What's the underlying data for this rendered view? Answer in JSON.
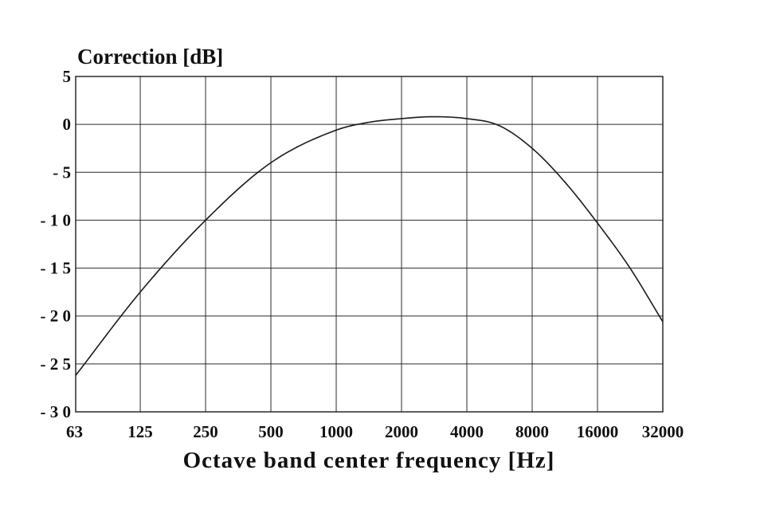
{
  "chart_data": {
    "type": "line",
    "title": "",
    "ylabel": "Correction [dB]",
    "xlabel": "Octave band center frequency [Hz]",
    "x_scale": "log2 (octave bands)",
    "categories": [
      "63",
      "125",
      "250",
      "500",
      "1000",
      "2000",
      "4000",
      "8000",
      "16000",
      "32000"
    ],
    "x_values": [
      63,
      125,
      250,
      500,
      1000,
      2000,
      4000,
      8000,
      16000,
      32000
    ],
    "y_ticks": [
      "5",
      "0",
      "- 5",
      "- 1 0",
      "- 1 5",
      "- 2 0",
      "- 2 5",
      "- 3 0"
    ],
    "y_tick_values": [
      5,
      0,
      -5,
      -10,
      -15,
      -20,
      -25,
      -30
    ],
    "ylim": [
      -30,
      5
    ],
    "grid": true,
    "series": [
      {
        "x": [
          63,
          125,
          250,
          500,
          1000,
          1400,
          2000,
          2800,
          4000,
          5600,
          8000,
          11300,
          16000,
          22600,
          32000
        ],
        "values": [
          -26.2,
          -17.5,
          -10.0,
          -4.0,
          -0.6,
          0.2,
          0.6,
          0.8,
          0.6,
          -0.1,
          -2.5,
          -6.0,
          -10.3,
          -15.0,
          -20.6
        ]
      }
    ],
    "colors": {
      "line": "#1a1a1a",
      "grid": "#2a2a2a",
      "text": "#111111",
      "background": "#ffffff"
    }
  }
}
